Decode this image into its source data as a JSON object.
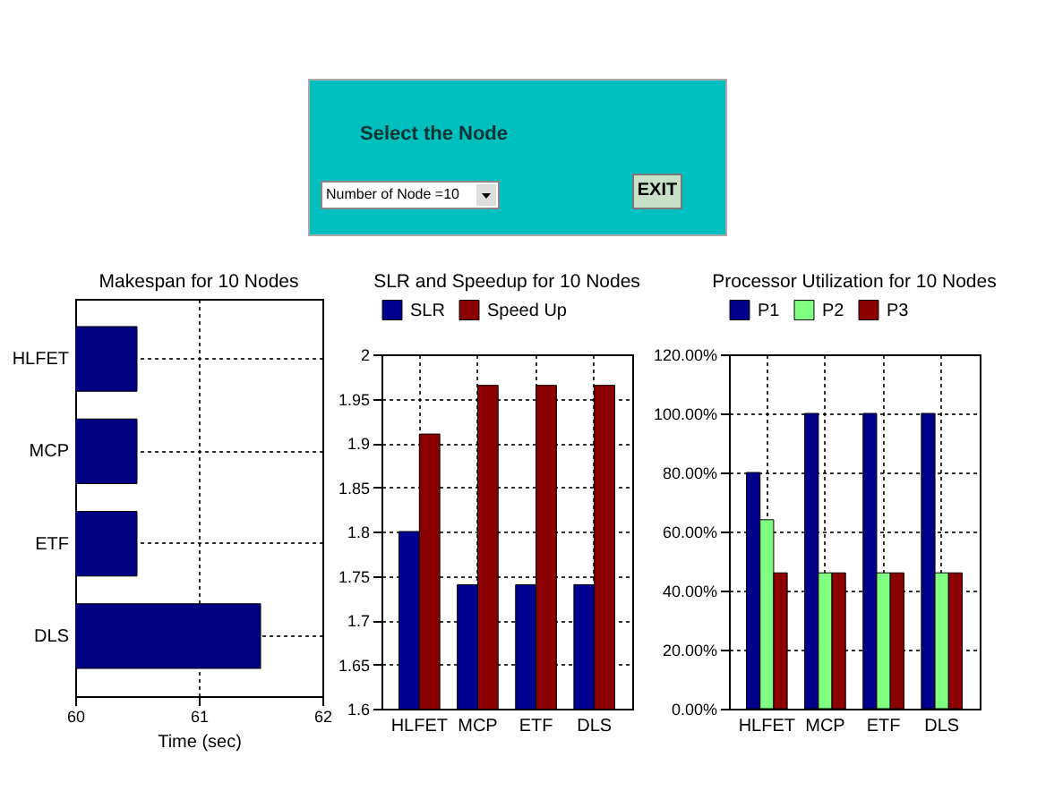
{
  "chart_data": [
    {
      "type": "other",
      "title": "Select the Node",
      "annotations": [
        "Number of Node =10",
        "EXIT"
      ]
    },
    {
      "type": "bar",
      "title": "Makespan for 10 Nodes",
      "orientation": "horizontal",
      "categories": [
        "HLFET",
        "MCP",
        "ETF",
        "DLS"
      ],
      "values": [
        60.5,
        60.5,
        60.5,
        61.5
      ],
      "color": "#000080",
      "xlabel": "Time (sec)",
      "xlim": [
        60,
        62
      ],
      "xticks": [
        60,
        61,
        62
      ],
      "grid": true
    },
    {
      "type": "bar",
      "title": "SLR and Speedup for 10 Nodes",
      "categories": [
        "HLFET",
        "MCP",
        "ETF",
        "DLS"
      ],
      "series": [
        {
          "name": "SLR",
          "color": "#000090",
          "values": [
            1.8,
            1.74,
            1.74,
            1.74
          ]
        },
        {
          "name": "Speed Up",
          "color": "#8b0000",
          "values": [
            1.91,
            1.965,
            1.965,
            1.965
          ]
        }
      ],
      "ylim": [
        1.6,
        2
      ],
      "yticks": [
        1.6,
        1.65,
        1.7,
        1.75,
        1.8,
        1.85,
        1.9,
        1.95,
        2
      ],
      "grid": true,
      "legend": "top"
    },
    {
      "type": "bar",
      "title": "Processor Utilization for 10 Nodes",
      "categories": [
        "HLFET",
        "MCP",
        "ETF",
        "DLS"
      ],
      "series": [
        {
          "name": "P1",
          "color": "#00008b",
          "values": [
            80,
            100,
            100,
            100
          ]
        },
        {
          "name": "P2",
          "color": "#80ff80",
          "values": [
            64,
            46,
            46,
            46
          ]
        },
        {
          "name": "P3",
          "color": "#8b0000",
          "values": [
            46,
            46,
            46,
            46
          ]
        }
      ],
      "ylim": [
        0,
        120
      ],
      "yticks": [
        {
          "value": 0,
          "label": "0.00%"
        },
        {
          "value": 20,
          "label": "20.00%"
        },
        {
          "value": 40,
          "label": "40.00%"
        },
        {
          "value": 60,
          "label": "60.00%"
        },
        {
          "value": 80,
          "label": "80.00%"
        },
        {
          "value": 100,
          "label": "100.00%"
        },
        {
          "value": 120,
          "label": "120.00%"
        }
      ],
      "grid": true,
      "legend": "top"
    }
  ]
}
